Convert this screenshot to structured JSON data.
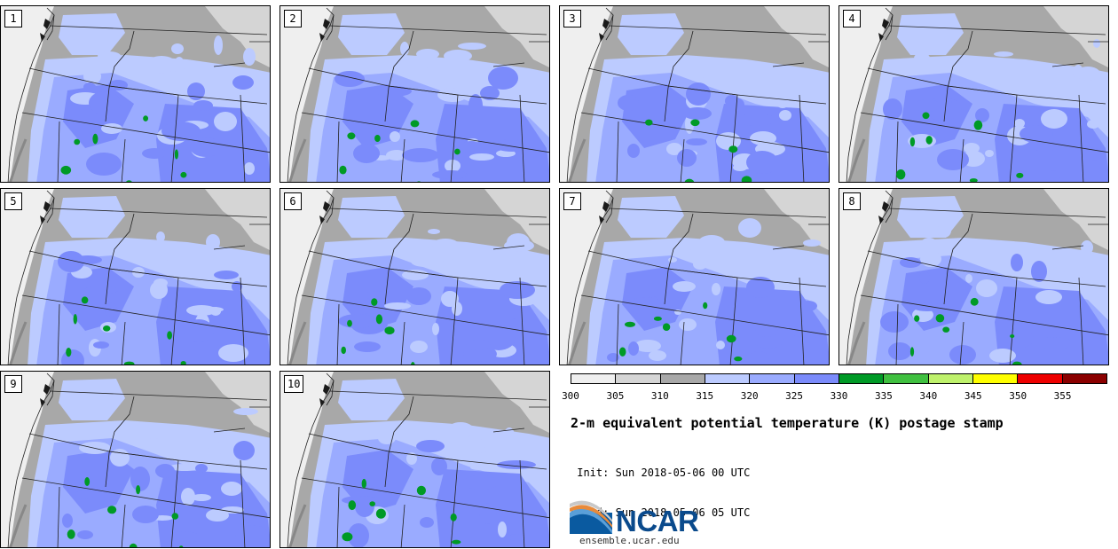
{
  "panels": [
    {
      "label": "1"
    },
    {
      "label": "2"
    },
    {
      "label": "3"
    },
    {
      "label": "4"
    },
    {
      "label": "5"
    },
    {
      "label": "6"
    },
    {
      "label": "7"
    },
    {
      "label": "8"
    },
    {
      "label": "9"
    },
    {
      "label": "10"
    }
  ],
  "colorbar": {
    "colors": [
      "#efefef",
      "#d5d5d5",
      "#a8a8a8",
      "#bccbff",
      "#9aabff",
      "#7b8bfb",
      "#009a26",
      "#40c040",
      "#bff26c",
      "#ffff00",
      "#ee0000",
      "#8b0000"
    ],
    "ticks": [
      "300",
      "305",
      "310",
      "315",
      "320",
      "325",
      "330",
      "335",
      "340",
      "345",
      "350",
      "355"
    ]
  },
  "title": "2-m equivalent potential temperature (K) postage stamp",
  "init_line": " Init: Sun 2018-05-06 00 UTC",
  "valid_line": "Valid: Sun 2018-05-06 05 UTC",
  "logo": {
    "name": "NCAR",
    "url": "ensemble.ucar.edu"
  }
}
